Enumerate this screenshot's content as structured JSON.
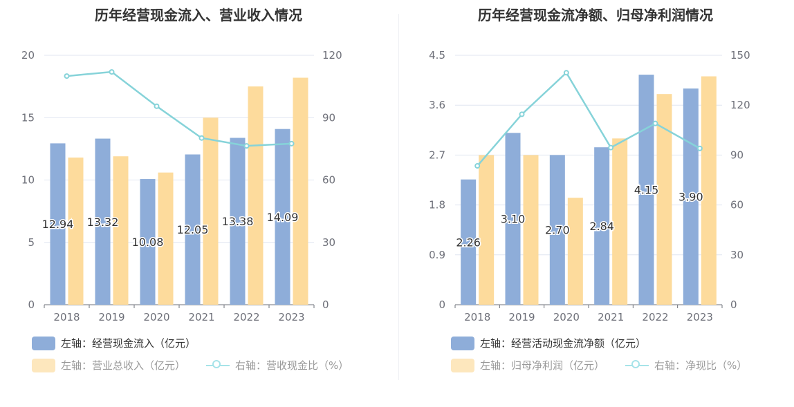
{
  "chart_data": [
    {
      "type": "bar",
      "title": "历年经营现金流入、营业收入情况",
      "categories": [
        "2018",
        "2019",
        "2020",
        "2021",
        "2022",
        "2023"
      ],
      "left_axis": {
        "ticks": [
          "0",
          "5",
          "10",
          "15",
          "20"
        ],
        "ylim": [
          0,
          20
        ]
      },
      "right_axis": {
        "ticks": [
          "0",
          "30",
          "60",
          "90",
          "120"
        ],
        "ylim": [
          0,
          120
        ]
      },
      "series": [
        {
          "name": "左轴：经营现金流入（亿元）",
          "axis": "left",
          "kind": "bar",
          "color": "#8eadd9",
          "values": [
            12.94,
            13.32,
            10.08,
            12.05,
            13.38,
            14.09
          ],
          "labels": [
            "12.94",
            "13.32",
            "10.08",
            "12.05",
            "13.38",
            "14.09"
          ]
        },
        {
          "name": "左轴：营业总收入（亿元）",
          "axis": "left",
          "kind": "bar",
          "color": "#fddb9c",
          "values": [
            11.8,
            11.9,
            10.6,
            15.0,
            17.5,
            18.2
          ]
        },
        {
          "name": "右轴：营收现金比（%）",
          "axis": "right",
          "kind": "line",
          "color": "#86d3d9",
          "values": [
            110,
            112,
            95.5,
            80.2,
            76.4,
            77.5
          ]
        }
      ],
      "legend": {
        "placement": "bottom"
      }
    },
    {
      "type": "bar",
      "title": "历年经营现金流净额、归母净利润情况",
      "categories": [
        "2018",
        "2019",
        "2020",
        "2021",
        "2022",
        "2023"
      ],
      "left_axis": {
        "ticks": [
          "0",
          "0.9",
          "1.8",
          "2.7",
          "3.6",
          "4.5"
        ],
        "ylim": [
          0,
          4.5
        ]
      },
      "right_axis": {
        "ticks": [
          "0",
          "30",
          "60",
          "90",
          "120",
          "150"
        ],
        "ylim": [
          0,
          150
        ]
      },
      "series": [
        {
          "name": "左轴：经营活动现金流净额（亿元）",
          "axis": "left",
          "kind": "bar",
          "color": "#8eadd9",
          "values": [
            2.26,
            3.1,
            2.7,
            2.84,
            4.15,
            3.9
          ],
          "labels": [
            "2.26",
            "3.10",
            "2.70",
            "2.84",
            "4.15",
            "3.90"
          ]
        },
        {
          "name": "左轴：归母净利润（亿元）",
          "axis": "left",
          "kind": "bar",
          "color": "#fddb9c",
          "values": [
            2.7,
            2.7,
            1.93,
            3.0,
            3.8,
            4.12
          ]
        },
        {
          "name": "右轴：净现比（%）",
          "axis": "right",
          "kind": "line",
          "color": "#86d3d9",
          "values": [
            83.5,
            114.5,
            139.5,
            94.5,
            109,
            94
          ]
        }
      ],
      "legend": {
        "placement": "bottom"
      }
    }
  ]
}
